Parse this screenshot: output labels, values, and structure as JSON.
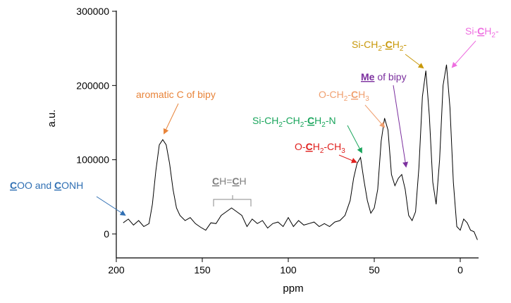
{
  "chart_data": {
    "type": "line",
    "title": "",
    "xlabel": "ppm",
    "ylabel": "a.u.",
    "xlim": [
      200,
      -10
    ],
    "x_reversed": true,
    "ylim": [
      -5000,
      300000
    ],
    "xticks": [
      200,
      150,
      100,
      50,
      0
    ],
    "yticks": [
      0,
      100000,
      200000,
      300000
    ],
    "xtick_labels": [
      "200",
      "150",
      "100",
      "50",
      "0"
    ],
    "ytick_labels": [
      "0",
      "100000",
      "200000",
      "300000"
    ],
    "grid": false,
    "legend": "none",
    "series": [
      {
        "color": "#000000",
        "x": [
          196,
          193,
          190,
          187,
          184,
          181,
          179,
          177,
          175,
          173,
          171,
          169,
          167,
          165,
          163,
          160,
          157,
          154,
          151,
          148,
          145,
          142,
          139,
          136,
          133,
          130,
          127,
          124,
          121,
          118,
          115,
          112,
          109,
          106,
          103,
          100,
          97,
          94,
          91,
          88,
          85,
          82,
          79,
          76,
          73,
          70,
          67,
          64,
          62,
          60,
          58,
          56,
          54,
          52,
          50,
          48,
          46,
          44,
          42,
          40,
          38,
          36,
          34,
          32,
          30,
          28,
          26,
          24,
          22,
          20,
          18,
          16,
          14,
          12,
          10,
          8,
          6,
          4,
          2,
          0,
          -2,
          -4,
          -6,
          -8,
          -10
        ],
        "y": [
          15000,
          20000,
          12000,
          18000,
          10000,
          14000,
          40000,
          85000,
          120000,
          127000,
          120000,
          95000,
          60000,
          35000,
          25000,
          18000,
          22000,
          14000,
          9000,
          5000,
          15000,
          14000,
          25000,
          30000,
          35000,
          30000,
          25000,
          10000,
          20000,
          14000,
          18000,
          8000,
          14000,
          16000,
          10000,
          22000,
          10000,
          18000,
          12000,
          14000,
          16000,
          10000,
          14000,
          10000,
          16000,
          18000,
          25000,
          45000,
          75000,
          95000,
          103000,
          72000,
          45000,
          28000,
          35000,
          60000,
          125000,
          156000,
          140000,
          80000,
          65000,
          75000,
          80000,
          60000,
          25000,
          18000,
          30000,
          90000,
          185000,
          220000,
          160000,
          70000,
          40000,
          100000,
          200000,
          228000,
          170000,
          70000,
          10000,
          5000,
          20000,
          15000,
          5000,
          3000,
          -8000
        ]
      }
    ],
    "annotations": [
      {
        "text": "COO and CONH",
        "color": "#2f6fb3"
      },
      {
        "text": "aromatic C of bipy",
        "color": "#e8843a"
      },
      {
        "text": "CH=CH",
        "color": "#7f7f7f"
      },
      {
        "text": "Si-CH2-CH2-CH2-N",
        "color": "#1aa55c"
      },
      {
        "text": "O-CH2-CH3",
        "color": "#e0201e"
      },
      {
        "text": "O-CH2-CH3",
        "color": "#f0a070"
      },
      {
        "text": "Me of bipy",
        "color": "#7b2f9e"
      },
      {
        "text": "Si-CH2-CH2-",
        "color": "#c8980a"
      },
      {
        "text": "Si-CH2-",
        "color": "#ee6ee0"
      }
    ]
  },
  "annotation_parts": {
    "coo_a": "C",
    "coo_b": "OO and ",
    "coo_c": "C",
    "coo_d": "ONH",
    "aro": "aromatic C of bipy",
    "chch_a": "C",
    "chch_b": "H=",
    "chch_c": "C",
    "chch_d": "H",
    "scn_a": "Si-CH",
    "scn_s1": "2",
    "scn_b": "-CH",
    "scn_s2": "2",
    "scn_c": "-",
    "scn_d": "C",
    "scn_e": "H",
    "scn_s3": "2",
    "scn_f": "-N",
    "oc_a": "O-",
    "oc_b": "C",
    "oc_c": "H",
    "oc_s1": "2",
    "oc_d": "-CH",
    "oc_s2": "3",
    "och_a": "O-CH",
    "och_s1": "2",
    "och_b": "-",
    "och_c": "C",
    "och_d": "H",
    "och_s2": "3",
    "me_a": "Me",
    "me_b": " of bipy",
    "scc_a": "Si-CH",
    "scc_s1": "2",
    "scc_b": "-",
    "scc_c": "C",
    "scc_d": "H",
    "scc_s2": "2",
    "scc_e": "-",
    "sc_a": "Si-",
    "sc_b": "C",
    "sc_c": "H",
    "sc_s1": "2",
    "sc_d": "-"
  }
}
